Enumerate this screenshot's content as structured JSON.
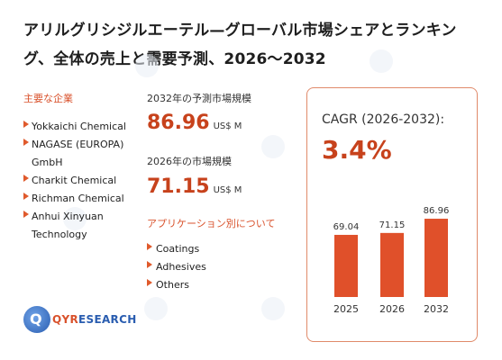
{
  "title": "アリルグリシジルエーテル—グローバル市場シェアとランキング、全体の売上と需要予測、2026〜2032",
  "watermark": "QYRESEARCH",
  "companies_label": "主要な企業",
  "companies": [
    "Yokkaichi Chemical",
    "NAGASE (EUROPA) GmbH",
    "Charkit Chemical",
    "Richman Chemical",
    "Anhui Xinyuan Technology"
  ],
  "forecast_2032": {
    "label": "2032年の予測市場規模",
    "value": "86.96",
    "unit": "US$ M"
  },
  "market_2026": {
    "label": "2026年の市場規模",
    "value": "71.15",
    "unit": "US$ M"
  },
  "applications_label": "アプリケーション別について",
  "applications": [
    "Coatings",
    "Adhesives",
    "Others"
  ],
  "logo": {
    "mark": "Q",
    "text_a": "QYR",
    "text_b": "ESEARCH"
  },
  "cagr": {
    "label": "CAGR (2026-2032):",
    "value": "3.4%"
  },
  "colors": {
    "accent": "#c7421c",
    "bar": "#e0502a",
    "border": "#e08a6a"
  },
  "chart_data": {
    "type": "bar",
    "categories": [
      "2025",
      "2026",
      "2032"
    ],
    "values": [
      69.04,
      71.15,
      86.96
    ],
    "value_labels": [
      "69.04",
      "71.15",
      "86.96"
    ],
    "ylim": [
      0,
      100
    ]
  }
}
